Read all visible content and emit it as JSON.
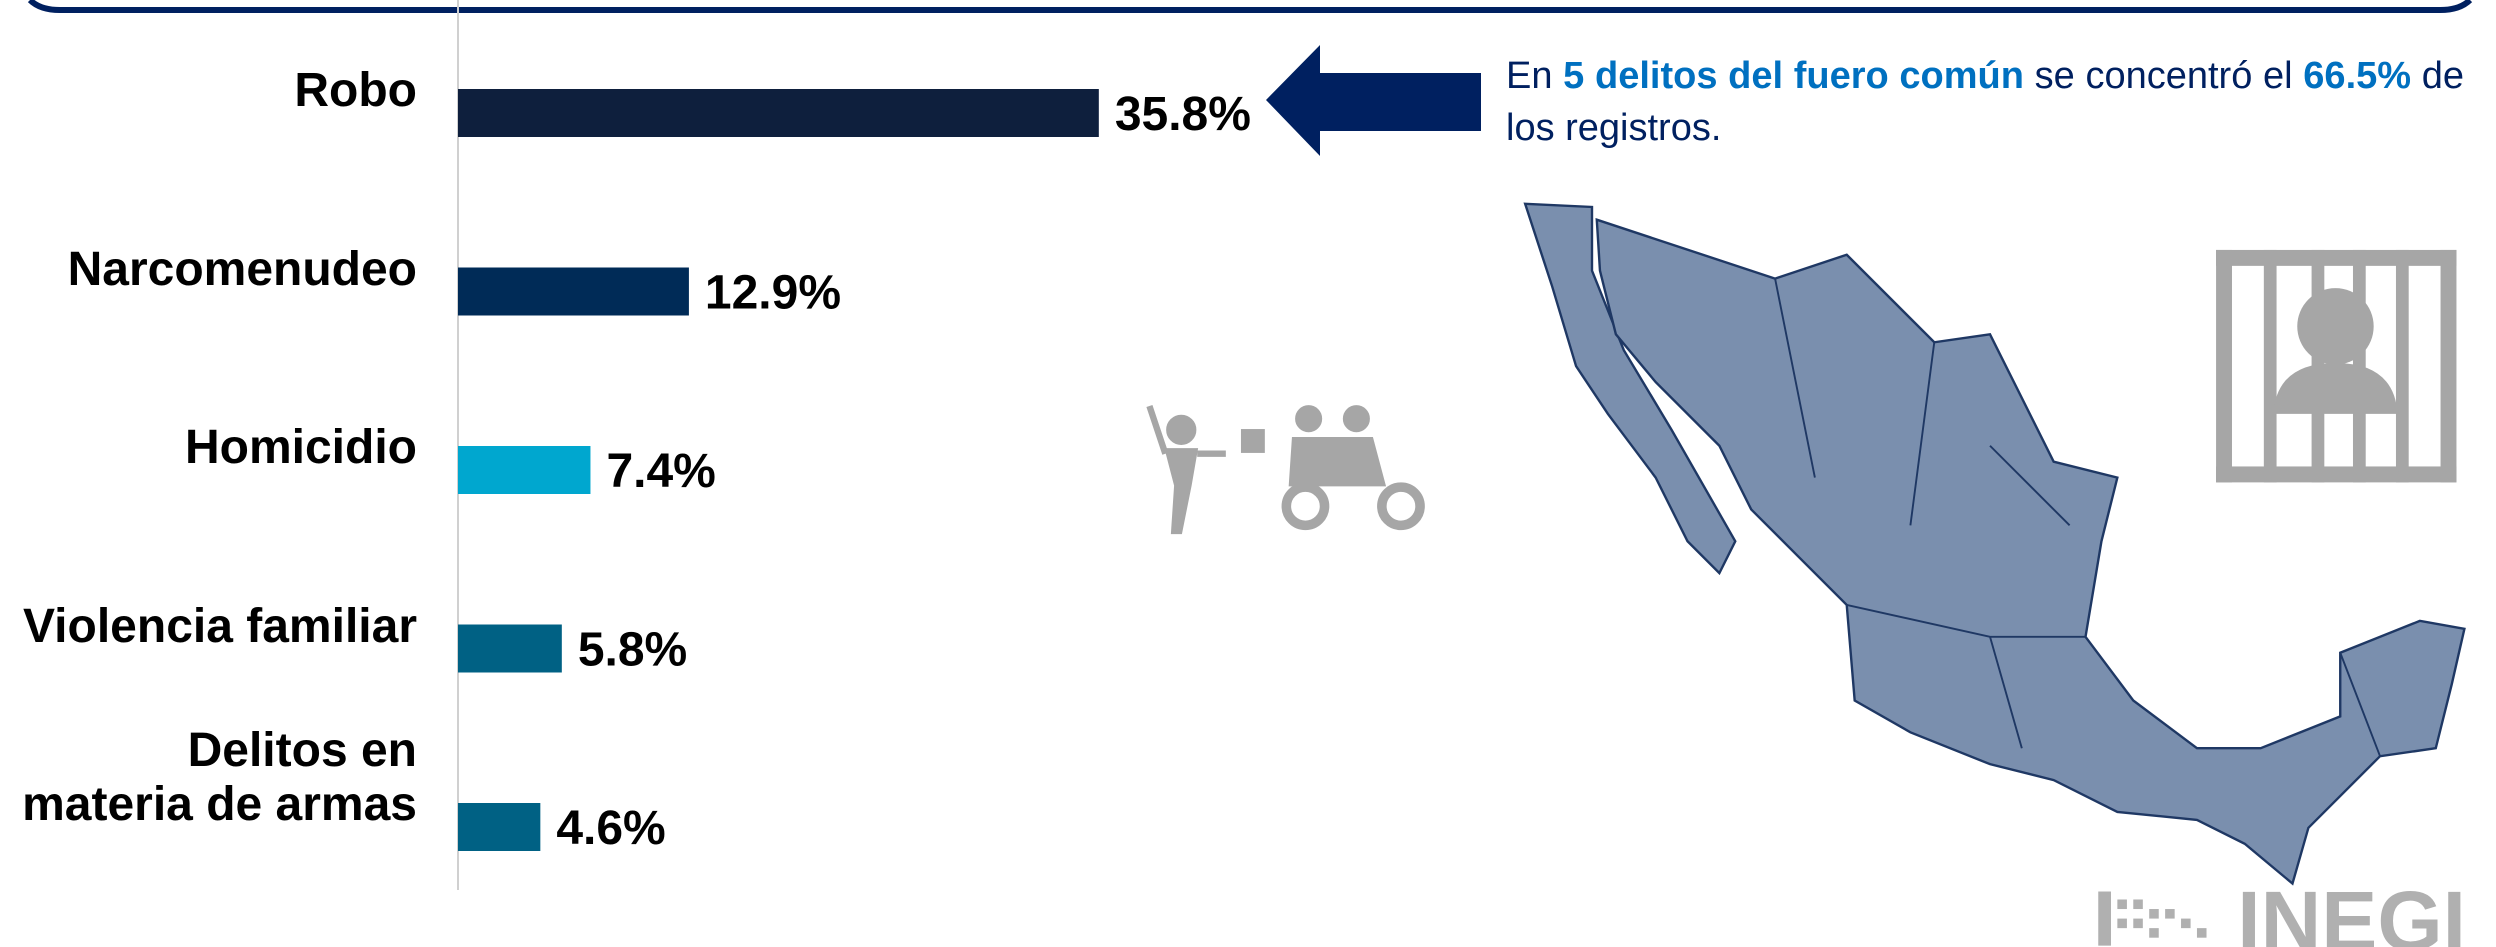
{
  "chart_data": {
    "type": "bar",
    "orientation": "horizontal",
    "categories": [
      "Robo",
      "Narcomenudeo",
      "Homicidio",
      "Violencia familiar",
      "Delitos en materia de armas"
    ],
    "values": [
      35.8,
      12.9,
      7.4,
      5.8,
      4.6
    ],
    "value_labels": [
      "35.8%",
      "12.9%",
      "7.4%",
      "5.8%",
      "4.6%"
    ],
    "colors": [
      "#0e1f3d",
      "#002b57",
      "#00a7cf",
      "#006184",
      "#006184"
    ],
    "annotation": [
      "En ",
      "5 delitos del fuero común",
      " se concentró el ",
      "66.5%",
      " de los registros."
    ]
  },
  "logo": "INEGI"
}
